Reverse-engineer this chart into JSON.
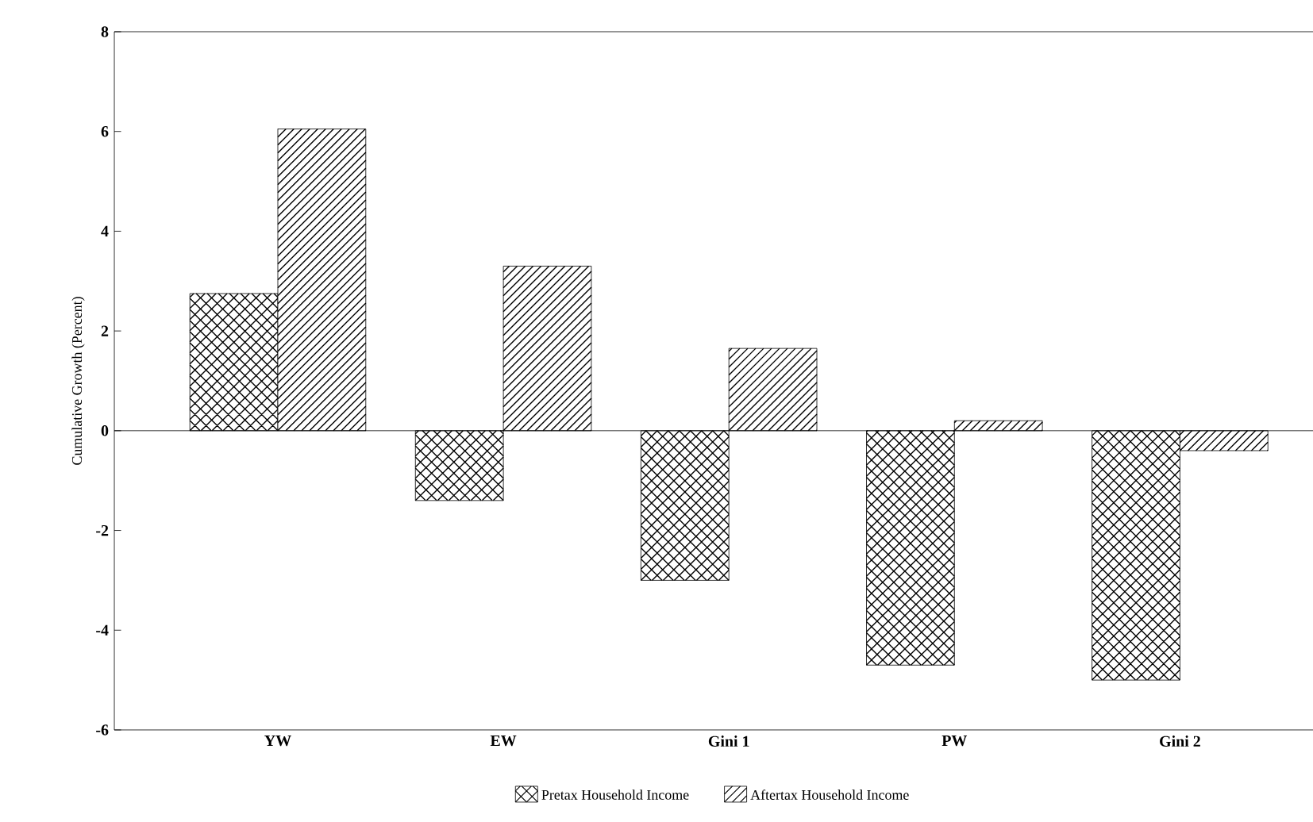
{
  "chart_data": {
    "type": "bar",
    "ylabel": "Cumulative Growth (Percent)",
    "categories": [
      "YW",
      "EW",
      "Gini 1",
      "PW",
      "Gini 2"
    ],
    "series": [
      {
        "name": "Pretax Household Income",
        "color": "#000000",
        "values": [
          2.75,
          -1.4,
          -3.0,
          -4.7,
          -5.0
        ]
      },
      {
        "name": "Aftertax Household Income",
        "color": "#000000",
        "values": [
          6.05,
          3.3,
          1.65,
          0.2,
          -0.4
        ]
      }
    ],
    "ylim": [
      -6,
      8
    ],
    "yticks": [
      -6,
      -4,
      -2,
      0,
      2,
      4,
      6,
      8
    ],
    "ref_lines": [
      {
        "axis": "y",
        "value": 0
      }
    ],
    "legend": "bottom"
  }
}
